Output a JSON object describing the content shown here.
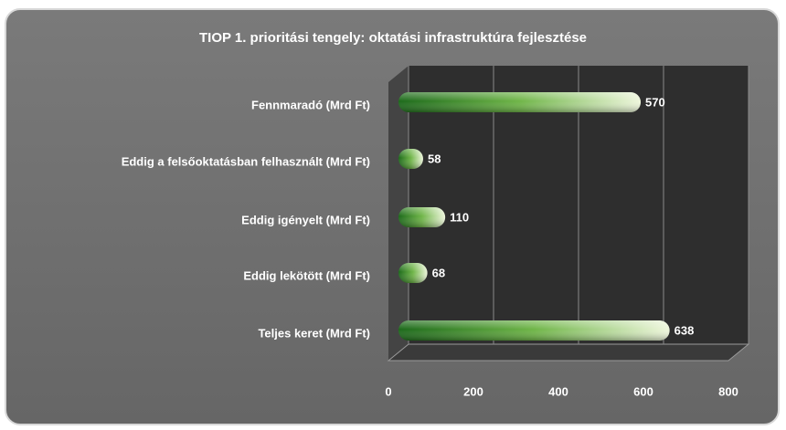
{
  "chart_data": {
    "type": "bar",
    "orientation": "horizontal",
    "title": "TIOP 1. prioritási tengely: oktatási infrastruktúra fejlesztése",
    "categories": [
      "Fennmaradó (Mrd Ft)",
      "Eddig a felsőoktatásban felhasznált (Mrd Ft)",
      "Eddig igényelt (Mrd Ft)",
      "Eddig lekötött (Mrd Ft)",
      "Teljes keret (Mrd Ft)"
    ],
    "values": [
      570,
      58,
      110,
      68,
      638
    ],
    "color": "#3f9a2e",
    "xlim": [
      0,
      800
    ],
    "xticks": [
      0,
      200,
      400,
      600,
      800
    ],
    "grid": true
  }
}
